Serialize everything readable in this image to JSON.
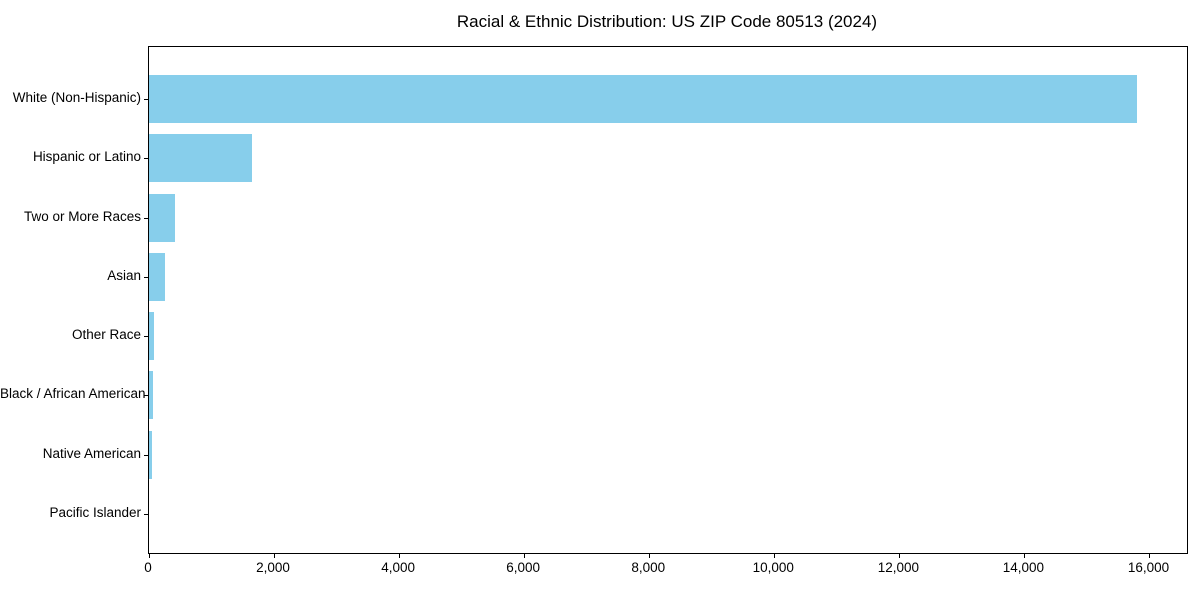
{
  "chart_data": {
    "type": "bar",
    "orientation": "horizontal",
    "title": "Racial & Ethnic Distribution: US ZIP Code 80513 (2024)",
    "categories": [
      "White (Non-Hispanic)",
      "Hispanic or Latino",
      "Two or More Races",
      "Asian",
      "Other Race",
      "Black / African American",
      "Native American",
      "Pacific Islander"
    ],
    "values": [
      15800,
      1650,
      420,
      250,
      80,
      70,
      40,
      0
    ],
    "xlabel": "",
    "ylabel": "",
    "xlim": [
      0,
      16600
    ],
    "x_ticks": [
      0,
      2000,
      4000,
      6000,
      8000,
      10000,
      12000,
      14000,
      16000
    ],
    "x_tick_labels": [
      "0",
      "2,000",
      "4,000",
      "6,000",
      "8,000",
      "10,000",
      "12,000",
      "14,000",
      "16,000"
    ],
    "grid": false,
    "legend": false,
    "colors": {
      "bar": "#87CEEB",
      "axis": "#000000",
      "text": "#000000",
      "background": "#ffffff"
    }
  }
}
